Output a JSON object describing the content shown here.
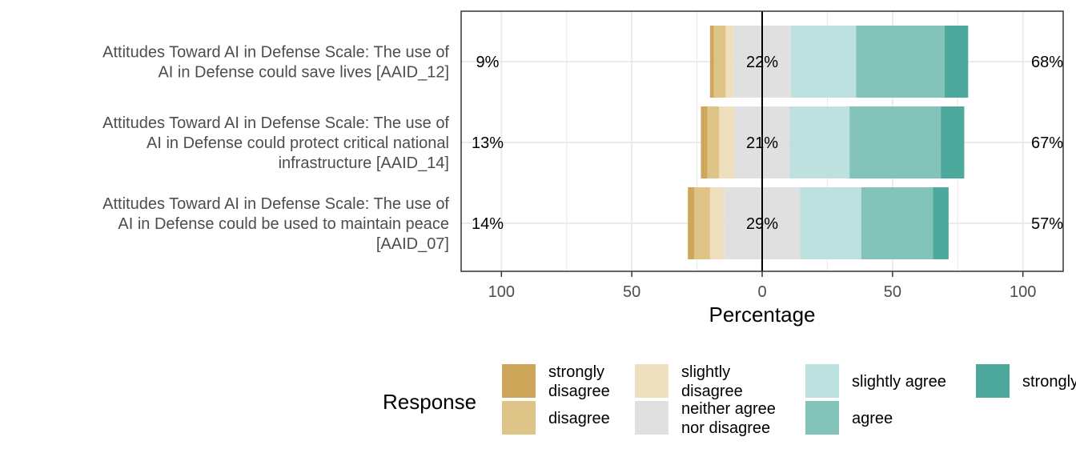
{
  "chart_data": {
    "type": "bar",
    "subtype": "diverging-stacked-likert",
    "xlabel": "Percentage",
    "ylabel": "",
    "xlim": [
      -100,
      100
    ],
    "x_ticks": [
      -100,
      -50,
      0,
      50,
      100
    ],
    "x_tick_labels": [
      "100",
      "50",
      "0",
      "50",
      "100"
    ],
    "grid": true,
    "categories": [
      [
        "Attitudes Toward AI in Defense Scale: The use of",
        "AI in Defense could save lives [AAID_12]"
      ],
      [
        "Attitudes Toward AI in Defense Scale: The use of",
        "AI in Defense could protect critical national",
        "infrastructure [AAID_14]"
      ],
      [
        "Attitudes Toward AI in Defense Scale: The use of",
        "AI in Defense could be used to maintain peace",
        "[AAID_07]"
      ]
    ],
    "series": [
      {
        "name": "strongly disagree",
        "name_lines": [
          "strongly",
          "disagree"
        ],
        "color": "#CFA75A",
        "values": [
          1.5,
          2.5,
          2.5
        ]
      },
      {
        "name": "disagree",
        "name_lines": [
          "disagree"
        ],
        "color": "#DFC488",
        "values": [
          4.5,
          4.5,
          6.0
        ]
      },
      {
        "name": "slightly disagree",
        "name_lines": [
          "slightly",
          "disagree"
        ],
        "color": "#EEDFBF",
        "values": [
          3.0,
          6.0,
          5.5
        ]
      },
      {
        "name": "neither agree nor disagree",
        "name_lines": [
          "neither agree",
          "nor disagree"
        ],
        "color": "#E0E0E0",
        "values": [
          22,
          21,
          29
        ]
      },
      {
        "name": "slightly agree",
        "name_lines": [
          "slightly agree"
        ],
        "color": "#BCE1DE",
        "values": [
          25,
          23,
          23.5
        ]
      },
      {
        "name": "agree",
        "name_lines": [
          "agree"
        ],
        "color": "#84C3BA",
        "values": [
          34,
          35,
          27.5
        ]
      },
      {
        "name": "strongly agree",
        "name_lines": [
          "strongly agree"
        ],
        "color": "#4CA99C",
        "values": [
          9,
          9,
          6
        ]
      }
    ],
    "left_labels": [
      "9%",
      "13%",
      "14%"
    ],
    "center_labels": [
      "22%",
      "21%",
      "29%"
    ],
    "right_labels": [
      "68%",
      "67%",
      "57%"
    ],
    "legend": {
      "title": "Response",
      "position": "bottom"
    }
  }
}
